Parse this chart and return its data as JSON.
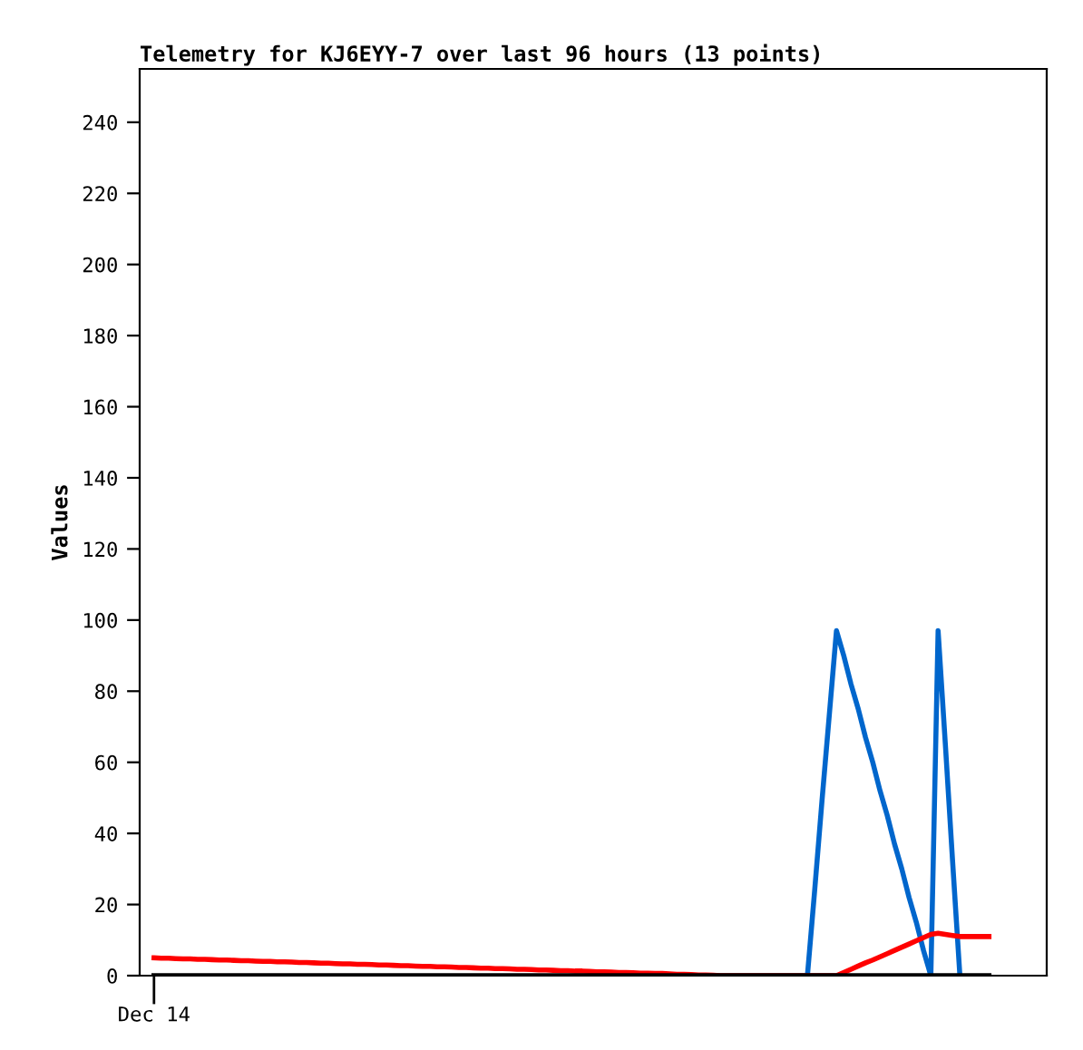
{
  "chart_data": {
    "type": "line",
    "title": "Telemetry for KJ6EYY-7 over last 96 hours (13 points)",
    "ylabel": "Values",
    "annotations": [
      "Dec 14"
    ],
    "categories": [
      null,
      null,
      null,
      null,
      null,
      null,
      null,
      null,
      null,
      null,
      null,
      null,
      null,
      null,
      null,
      null,
      null,
      null,
      null,
      null,
      null,
      null,
      null,
      null,
      null,
      null,
      null,
      null,
      null,
      null,
      null,
      null,
      null,
      null,
      null,
      null,
      null,
      null,
      null,
      null,
      null,
      null,
      null,
      null,
      null,
      null,
      null,
      null,
      null,
      null,
      null,
      null,
      null,
      null,
      null,
      null,
      null,
      null,
      null,
      null,
      null,
      null,
      null,
      null,
      null,
      null,
      null,
      null,
      null,
      null,
      null,
      null,
      null,
      null,
      null,
      null,
      null,
      null,
      null,
      null,
      null,
      null,
      null,
      null,
      null,
      null,
      null,
      null,
      null,
      null,
      null,
      null,
      null,
      null,
      null,
      null,
      null,
      null,
      null,
      null,
      null,
      null,
      null,
      null,
      null,
      null,
      null,
      null,
      null,
      null,
      null,
      null,
      null,
      null,
      null,
      null
    ],
    "ylim": [
      0,
      255
    ],
    "yticks": [
      0,
      20,
      40,
      60,
      80,
      100,
      120,
      140,
      160,
      180,
      200,
      220,
      240
    ],
    "grid": false,
    "legend": false,
    "marker": "none",
    "line_style": "solid",
    "series": [
      {
        "color": "#0066cc",
        "values": [
          null,
          null,
          null,
          null,
          null,
          null,
          null,
          null,
          null,
          null,
          null,
          null,
          null,
          null,
          null,
          null,
          null,
          null,
          null,
          null,
          null,
          null,
          null,
          null,
          null,
          null,
          null,
          null,
          null,
          null,
          null,
          null,
          null,
          null,
          null,
          null,
          null,
          null,
          null,
          null,
          null,
          null,
          null,
          null,
          null,
          null,
          null,
          null,
          null,
          null,
          null,
          null,
          null,
          null,
          null,
          null,
          null,
          null,
          null,
          null,
          null,
          null,
          null,
          null,
          null,
          null,
          null,
          null,
          null,
          null,
          null,
          null,
          null,
          null,
          null,
          null,
          null,
          null,
          null,
          null,
          null,
          null,
          null,
          null,
          null,
          null,
          null,
          null,
          null,
          null,
          0,
          24,
          49,
          73,
          97,
          90,
          82,
          75,
          67,
          60,
          52,
          45,
          37,
          30,
          22,
          15,
          7,
          0,
          97,
          65,
          32,
          0,
          null,
          null,
          null,
          null
        ]
      },
      {
        "color": "#ff0000",
        "values": [
          5.0,
          4.9,
          4.9,
          4.8,
          4.7,
          4.7,
          4.6,
          4.6,
          4.5,
          4.4,
          4.4,
          4.3,
          4.2,
          4.2,
          4.1,
          4.0,
          4.0,
          3.9,
          3.9,
          3.8,
          3.7,
          3.7,
          3.6,
          3.5,
          3.5,
          3.4,
          3.3,
          3.3,
          3.2,
          3.2,
          3.1,
          3.0,
          3.0,
          2.9,
          2.8,
          2.8,
          2.7,
          2.6,
          2.6,
          2.5,
          2.5,
          2.4,
          2.3,
          2.3,
          2.2,
          2.1,
          2.1,
          2.0,
          2.0,
          1.9,
          1.8,
          1.8,
          1.7,
          1.6,
          1.6,
          1.5,
          1.4,
          1.4,
          1.3,
          1.3,
          1.2,
          1.1,
          1.1,
          1.0,
          0.9,
          0.9,
          0.8,
          0.7,
          0.7,
          0.6,
          0.6,
          0.5,
          0.4,
          0.4,
          0.3,
          0.2,
          0.2,
          0.1,
          0,
          0,
          0,
          0,
          0,
          0,
          0,
          0,
          0,
          0,
          0,
          0,
          0,
          0,
          0,
          0,
          0,
          0.9,
          1.8,
          2.7,
          3.6,
          4.4,
          5.3,
          6.2,
          7.1,
          8.0,
          8.9,
          9.8,
          10.7,
          11.6,
          11.9,
          11.6,
          11.3,
          11,
          11,
          11,
          11,
          11
        ]
      },
      {
        "color": "#000000",
        "values": [
          0,
          0,
          0,
          0,
          0,
          0,
          0,
          0,
          0,
          0,
          0,
          0,
          0,
          0,
          0,
          0,
          0,
          0,
          0,
          0,
          0,
          0,
          0,
          0,
          0,
          0,
          0,
          0,
          0,
          0,
          0,
          0,
          0,
          0,
          0,
          0,
          0,
          0,
          0,
          0,
          0,
          0,
          0,
          0,
          0,
          0,
          0,
          0,
          0,
          0,
          0,
          0,
          0,
          0,
          0,
          0,
          0,
          0,
          0,
          0,
          0,
          0,
          0,
          0,
          0,
          0,
          0,
          0,
          0,
          0,
          0,
          0,
          0,
          0,
          0,
          0,
          0,
          0,
          0,
          0,
          0,
          0,
          0,
          0,
          0,
          0,
          0,
          0,
          0,
          0,
          0,
          0,
          0,
          0,
          0,
          0,
          0,
          0,
          0,
          0,
          0,
          0,
          0,
          0,
          0,
          0,
          0,
          0,
          0,
          0,
          0,
          0,
          0,
          0,
          0,
          0
        ]
      }
    ]
  }
}
